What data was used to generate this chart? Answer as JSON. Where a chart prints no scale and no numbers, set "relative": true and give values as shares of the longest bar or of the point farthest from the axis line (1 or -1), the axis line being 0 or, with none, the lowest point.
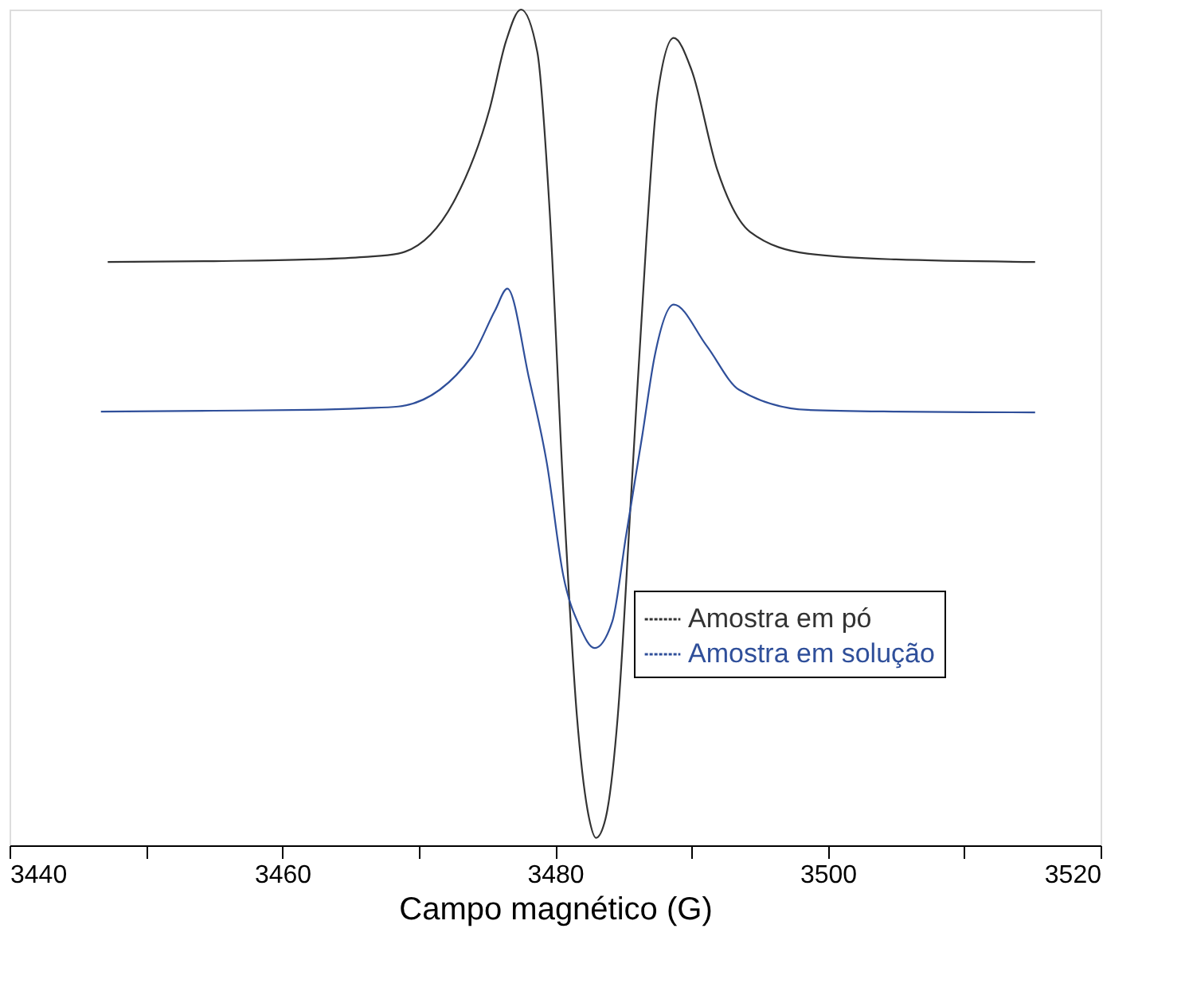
{
  "chart_data": {
    "type": "line",
    "relative": true,
    "xlabel": "Campo magnético (G)",
    "xlim": [
      3440,
      3520
    ],
    "xticks": [
      3440,
      {
        "value": 3450,
        "label": null
      },
      3460,
      {
        "value": 3470,
        "label": null
      },
      3480,
      {
        "value": 3490,
        "label": null
      },
      3500,
      {
        "value": 3510,
        "label": null
      },
      3520
    ],
    "legend": "bottom right",
    "grid": false,
    "marker": "none",
    "line_style": "solid",
    "series": [
      {
        "name": "Amostra em pó",
        "color": "#333333",
        "x": [
          3447.2,
          3455,
          3462,
          3466,
          3468.5,
          3472.7,
          3475.2,
          3476.4,
          3477.5,
          3478.7,
          3479.6,
          3480.6,
          3481.6,
          3482.5,
          3483.0,
          3483.7,
          3484.6,
          3485.6,
          3486.7,
          3487.5,
          3488.7,
          3490.0,
          3491.9,
          3494.3,
          3498.5,
          3505,
          3515.2
        ],
        "values": [
          0.698,
          0.699,
          0.701,
          0.704,
          0.708,
          0.774,
          0.881,
          0.962,
          1.0,
          0.949,
          0.76,
          0.425,
          0.155,
          0.032,
          0.009,
          0.032,
          0.155,
          0.425,
          0.726,
          0.896,
          0.966,
          0.928,
          0.808,
          0.734,
          0.708,
          0.701,
          0.698
        ]
      },
      {
        "name": "Amostra em solução",
        "color": "#2f4f9a",
        "x": [
          3446.7,
          3455,
          3462,
          3466,
          3468.5,
          3473.9,
          3475.6,
          3476.5,
          3478.1,
          3479.4,
          3480.6,
          3481.8,
          3482.9,
          3484.2,
          3485.2,
          3486.4,
          3487.3,
          3488.7,
          3491.1,
          3493.5,
          3498.5,
          3505,
          3515.2
        ],
        "values": [
          0.519,
          0.52,
          0.521,
          0.523,
          0.525,
          0.585,
          0.64,
          0.666,
          0.558,
          0.457,
          0.323,
          0.262,
          0.236,
          0.268,
          0.37,
          0.491,
          0.585,
          0.647,
          0.598,
          0.545,
          0.521,
          0.519,
          0.518
        ]
      }
    ]
  }
}
